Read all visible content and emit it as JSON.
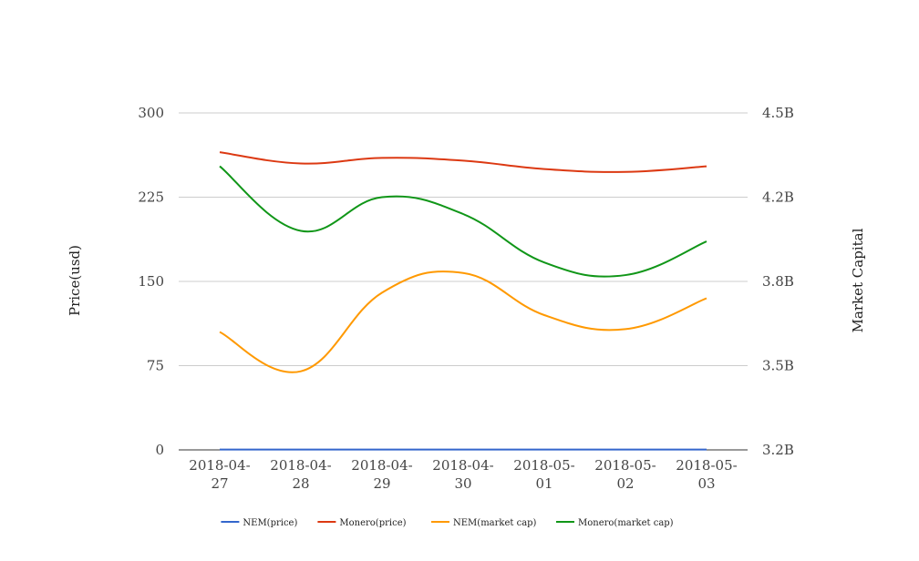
{
  "chart_data": {
    "type": "line",
    "categories": [
      [
        "2018-04-",
        "27"
      ],
      [
        "2018-04-",
        "28"
      ],
      [
        "2018-04-",
        "29"
      ],
      [
        "2018-04-",
        "30"
      ],
      [
        "2018-05-",
        "01"
      ],
      [
        "2018-05-",
        "02"
      ],
      [
        "2018-05-",
        "03"
      ]
    ],
    "y_left": {
      "label": "Price(usd)",
      "ticks": [
        0,
        75,
        150,
        225,
        300
      ],
      "tick_labels": [
        "0",
        "75",
        "150",
        "225",
        "300"
      ],
      "range": [
        0,
        300
      ]
    },
    "y_right": {
      "label": "Market Capital",
      "ticks": [
        3.2,
        3.5,
        3.8,
        4.2,
        4.5
      ],
      "tick_labels": [
        "3.2B",
        "3.5B",
        "3.8B",
        "4.2B",
        "4.5B"
      ],
      "range": [
        3.2,
        4.5
      ]
    },
    "grid": true,
    "legend_position": "bottom",
    "series": [
      {
        "name": "NEM(price)",
        "axis": "left",
        "color": "#3366cc",
        "values": [
          0.35,
          0.33,
          0.34,
          0.34,
          0.33,
          0.33,
          0.33
        ]
      },
      {
        "name": "Monero(price)",
        "axis": "right",
        "color": "#dc3912",
        "values": [
          4.36,
          4.32,
          4.34,
          4.33,
          4.3,
          4.29,
          4.31
        ]
      },
      {
        "name": "NEM(market cap)",
        "axis": "right",
        "color": "#ff9900",
        "values": [
          3.62,
          3.48,
          3.76,
          3.84,
          3.68,
          3.63,
          3.74
        ]
      },
      {
        "name": "Monero(market cap)",
        "axis": "right",
        "color": "#109618",
        "values": [
          4.31,
          4.04,
          4.2,
          4.12,
          3.89,
          3.83,
          3.99
        ]
      }
    ]
  }
}
